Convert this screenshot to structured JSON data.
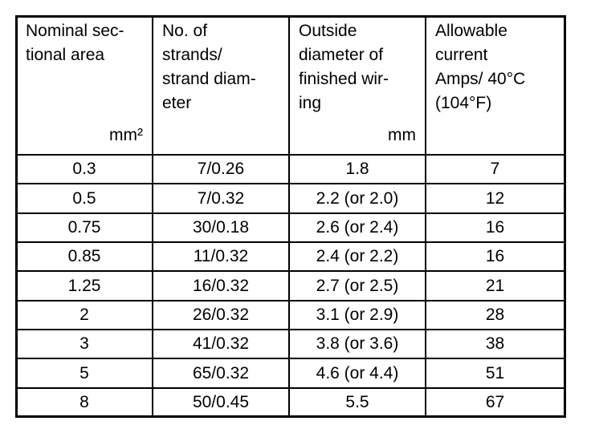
{
  "table": {
    "header": [
      {
        "lines": [
          "Nominal sec-",
          "tional area"
        ],
        "unit": "mm²"
      },
      {
        "lines": [
          "No. of",
          "strands/",
          "strand diam-",
          "eter"
        ]
      },
      {
        "lines": [
          "Outside",
          "diameter of",
          "finished wir-",
          "ing"
        ],
        "unit": "mm"
      },
      {
        "lines": [
          "Allowable",
          "current",
          "Amps/ 40°C",
          "(104°F)"
        ]
      }
    ],
    "rows": [
      [
        "0.3",
        "7/0.26",
        "1.8",
        "7"
      ],
      [
        "0.5",
        "7/0.32",
        "2.2 (or 2.0)",
        "12"
      ],
      [
        "0.75",
        "30/0.18",
        "2.6 (or 2.4)",
        "16"
      ],
      [
        "0.85",
        "11/0.32",
        "2.4 (or 2.2)",
        "16"
      ],
      [
        "1.25",
        "16/0.32",
        "2.7 (or 2.5)",
        "21"
      ],
      [
        "2",
        "26/0.32",
        "3.1 (or 2.9)",
        "28"
      ],
      [
        "3",
        "41/0.32",
        "3.8 (or 3.6)",
        "38"
      ],
      [
        "5",
        "65/0.32",
        "4.6 (or 4.4)",
        "51"
      ],
      [
        "8",
        "50/0.45",
        "5.5",
        "67"
      ]
    ]
  }
}
